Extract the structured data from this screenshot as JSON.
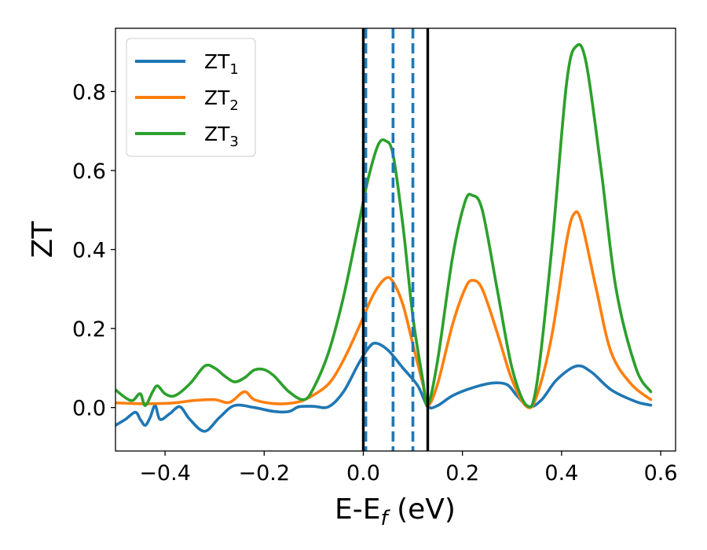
{
  "chart_data": {
    "type": "line",
    "xlabel": {
      "base": "E-E",
      "sub": "f",
      "tail": " (eV)"
    },
    "ylabel": "ZT",
    "xlim": [
      -0.5,
      0.63
    ],
    "ylim": [
      -0.11,
      0.96
    ],
    "xticks": [
      {
        "value": -0.4,
        "label": "−0.4"
      },
      {
        "value": -0.2,
        "label": "−0.2"
      },
      {
        "value": 0.0,
        "label": "0.0"
      },
      {
        "value": 0.2,
        "label": "0.2"
      },
      {
        "value": 0.4,
        "label": "0.4"
      },
      {
        "value": 0.6,
        "label": "0.6"
      }
    ],
    "yticks": [
      {
        "value": 0.0,
        "label": "0.0"
      },
      {
        "value": 0.2,
        "label": "0.2"
      },
      {
        "value": 0.4,
        "label": "0.4"
      },
      {
        "value": 0.6,
        "label": "0.6"
      },
      {
        "value": 0.8,
        "label": "0.8"
      }
    ],
    "grid": false,
    "legend_position": "top-left",
    "series": [
      {
        "name": "ZT",
        "sub": "1",
        "color": "#1f77b4",
        "points": [
          [
            -0.5,
            -0.045
          ],
          [
            -0.48,
            -0.03
          ],
          [
            -0.46,
            -0.012
          ],
          [
            -0.45,
            -0.03
          ],
          [
            -0.44,
            -0.045
          ],
          [
            -0.43,
            -0.025
          ],
          [
            -0.42,
            0.005
          ],
          [
            -0.41,
            -0.03
          ],
          [
            -0.39,
            -0.015
          ],
          [
            -0.37,
            0.002
          ],
          [
            -0.35,
            -0.03
          ],
          [
            -0.32,
            -0.06
          ],
          [
            -0.29,
            -0.025
          ],
          [
            -0.26,
            0.005
          ],
          [
            -0.22,
            0.0
          ],
          [
            -0.18,
            -0.01
          ],
          [
            -0.15,
            -0.01
          ],
          [
            -0.13,
            0.002
          ],
          [
            -0.1,
            0.003
          ],
          [
            -0.07,
            0.002
          ],
          [
            -0.04,
            0.04
          ],
          [
            -0.01,
            0.11
          ],
          [
            0.01,
            0.15
          ],
          [
            0.025,
            0.163
          ],
          [
            0.05,
            0.145
          ],
          [
            0.08,
            0.1
          ],
          [
            0.11,
            0.055
          ],
          [
            0.13,
            0.003
          ],
          [
            0.15,
            0.005
          ],
          [
            0.18,
            0.03
          ],
          [
            0.22,
            0.05
          ],
          [
            0.26,
            0.062
          ],
          [
            0.29,
            0.058
          ],
          [
            0.31,
            0.03
          ],
          [
            0.335,
            0.002
          ],
          [
            0.36,
            0.02
          ],
          [
            0.39,
            0.07
          ],
          [
            0.43,
            0.105
          ],
          [
            0.46,
            0.09
          ],
          [
            0.5,
            0.045
          ],
          [
            0.55,
            0.015
          ],
          [
            0.58,
            0.006
          ]
        ]
      },
      {
        "name": "ZT",
        "sub": "2",
        "color": "#ff7f0e",
        "points": [
          [
            -0.5,
            0.012
          ],
          [
            -0.46,
            0.01
          ],
          [
            -0.42,
            0.01
          ],
          [
            -0.38,
            0.012
          ],
          [
            -0.34,
            0.018
          ],
          [
            -0.3,
            0.02
          ],
          [
            -0.27,
            0.013
          ],
          [
            -0.24,
            0.04
          ],
          [
            -0.22,
            0.02
          ],
          [
            -0.18,
            0.01
          ],
          [
            -0.14,
            0.012
          ],
          [
            -0.11,
            0.025
          ],
          [
            -0.07,
            0.06
          ],
          [
            -0.04,
            0.12
          ],
          [
            -0.01,
            0.2
          ],
          [
            0.02,
            0.285
          ],
          [
            0.045,
            0.327
          ],
          [
            0.06,
            0.318
          ],
          [
            0.08,
            0.26
          ],
          [
            0.1,
            0.16
          ],
          [
            0.12,
            0.06
          ],
          [
            0.13,
            0.005
          ],
          [
            0.15,
            0.06
          ],
          [
            0.18,
            0.21
          ],
          [
            0.205,
            0.3
          ],
          [
            0.22,
            0.322
          ],
          [
            0.24,
            0.3
          ],
          [
            0.27,
            0.19
          ],
          [
            0.3,
            0.07
          ],
          [
            0.33,
            0.002
          ],
          [
            0.35,
            0.03
          ],
          [
            0.38,
            0.18
          ],
          [
            0.41,
            0.42
          ],
          [
            0.425,
            0.49
          ],
          [
            0.44,
            0.47
          ],
          [
            0.47,
            0.3
          ],
          [
            0.5,
            0.14
          ],
          [
            0.54,
            0.06
          ],
          [
            0.58,
            0.02
          ]
        ]
      },
      {
        "name": "ZT",
        "sub": "3",
        "color": "#2ca02c",
        "points": [
          [
            -0.5,
            0.045
          ],
          [
            -0.48,
            0.025
          ],
          [
            -0.465,
            0.018
          ],
          [
            -0.45,
            0.035
          ],
          [
            -0.44,
            0.005
          ],
          [
            -0.425,
            0.04
          ],
          [
            -0.415,
            0.055
          ],
          [
            -0.4,
            0.035
          ],
          [
            -0.38,
            0.03
          ],
          [
            -0.35,
            0.06
          ],
          [
            -0.32,
            0.105
          ],
          [
            -0.3,
            0.1
          ],
          [
            -0.28,
            0.08
          ],
          [
            -0.26,
            0.065
          ],
          [
            -0.24,
            0.075
          ],
          [
            -0.22,
            0.095
          ],
          [
            -0.2,
            0.096
          ],
          [
            -0.18,
            0.08
          ],
          [
            -0.15,
            0.04
          ],
          [
            -0.12,
            0.02
          ],
          [
            -0.1,
            0.05
          ],
          [
            -0.07,
            0.14
          ],
          [
            -0.04,
            0.28
          ],
          [
            -0.01,
            0.46
          ],
          [
            0.01,
            0.58
          ],
          [
            0.03,
            0.665
          ],
          [
            0.045,
            0.675
          ],
          [
            0.06,
            0.64
          ],
          [
            0.08,
            0.46
          ],
          [
            0.1,
            0.23
          ],
          [
            0.12,
            0.07
          ],
          [
            0.13,
            0.005
          ],
          [
            0.15,
            0.12
          ],
          [
            0.18,
            0.38
          ],
          [
            0.205,
            0.52
          ],
          [
            0.22,
            0.537
          ],
          [
            0.24,
            0.5
          ],
          [
            0.27,
            0.3
          ],
          [
            0.3,
            0.1
          ],
          [
            0.33,
            0.005
          ],
          [
            0.35,
            0.06
          ],
          [
            0.38,
            0.4
          ],
          [
            0.41,
            0.82
          ],
          [
            0.43,
            0.915
          ],
          [
            0.45,
            0.87
          ],
          [
            0.48,
            0.6
          ],
          [
            0.51,
            0.3
          ],
          [
            0.55,
            0.1
          ],
          [
            0.58,
            0.04
          ]
        ]
      }
    ],
    "vlines": [
      {
        "x": 0.0,
        "color": "#000000",
        "style": "solid"
      },
      {
        "x": 0.005,
        "color": "#1f77b4",
        "style": "dashed"
      },
      {
        "x": 0.06,
        "color": "#1f77b4",
        "style": "dashed"
      },
      {
        "x": 0.1,
        "color": "#1f77b4",
        "style": "dashed"
      },
      {
        "x": 0.13,
        "color": "#000000",
        "style": "solid"
      }
    ]
  }
}
